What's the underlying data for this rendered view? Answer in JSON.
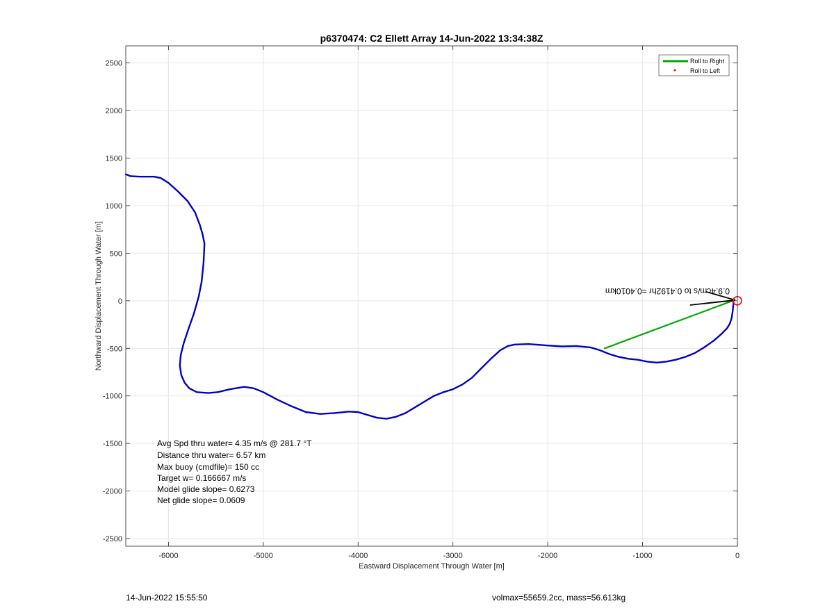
{
  "chart_data": {
    "type": "line",
    "title": "p6370474: C2 Ellett Array 14-Jun-2022 13:34:38Z",
    "xlabel": "Eastward Displacement Through Water [m]",
    "ylabel": "Northward Displacement Through Water [m]",
    "xlim": [
      -6450,
      0
    ],
    "ylim": [
      -2580,
      2680
    ],
    "xticks": [
      -6000,
      -5000,
      -4000,
      -3000,
      -2000,
      -1000,
      0
    ],
    "yticks": [
      -2500,
      -2000,
      -1500,
      -1000,
      -500,
      0,
      500,
      1000,
      1500,
      2000,
      2500
    ],
    "grid": true,
    "legend_position": "top-right",
    "legend": [
      {
        "name": "Roll to Right",
        "color": "#00a800",
        "style": "line"
      },
      {
        "name": "Roll to Left",
        "color": "#ff0000",
        "style": "dot"
      }
    ],
    "series": [
      {
        "name": "track",
        "color": "#0000c8",
        "x": [
          -6450,
          -6400,
          -6300,
          -6150,
          -6080,
          -6000,
          -5900,
          -5800,
          -5720,
          -5670,
          -5640,
          -5620,
          -5630,
          -5650,
          -5680,
          -5730,
          -5790,
          -5840,
          -5870,
          -5880,
          -5865,
          -5830,
          -5780,
          -5700,
          -5580,
          -5480,
          -5350,
          -5200,
          -5100,
          -5000,
          -4850,
          -4700,
          -4550,
          -4400,
          -4250,
          -4100,
          -4000,
          -3900,
          -3800,
          -3700,
          -3600,
          -3500,
          -3400,
          -3300,
          -3200,
          -3100,
          -3000,
          -2900,
          -2800,
          -2700,
          -2600,
          -2500,
          -2420,
          -2350,
          -2200,
          -2000,
          -1850,
          -1700,
          -1550,
          -1450,
          -1350,
          -1250,
          -1150,
          -1050,
          -950,
          -850,
          -750,
          -650,
          -550,
          -450,
          -350,
          -250,
          -170,
          -110,
          -80,
          -60,
          -50,
          -45,
          -40
        ],
        "y": [
          1330,
          1310,
          1305,
          1305,
          1290,
          1240,
          1150,
          1050,
          930,
          800,
          700,
          600,
          400,
          200,
          50,
          -130,
          -300,
          -450,
          -570,
          -680,
          -780,
          -860,
          -920,
          -960,
          -970,
          -960,
          -930,
          -905,
          -920,
          -960,
          -1040,
          -1110,
          -1170,
          -1190,
          -1180,
          -1165,
          -1170,
          -1200,
          -1230,
          -1240,
          -1220,
          -1180,
          -1120,
          -1060,
          -1000,
          -960,
          -930,
          -880,
          -810,
          -710,
          -610,
          -520,
          -475,
          -460,
          -455,
          -470,
          -480,
          -475,
          -490,
          -520,
          -560,
          -590,
          -610,
          -620,
          -640,
          -650,
          -640,
          -620,
          -590,
          -550,
          -490,
          -420,
          -350,
          -290,
          -240,
          -180,
          -110,
          -60,
          -10
        ]
      },
      {
        "name": "Roll to Right",
        "color": "#00a800",
        "x": [
          -1400,
          -50
        ],
        "y": [
          -500,
          0
        ]
      }
    ],
    "annotations": [
      "Avg Spd thru water=  4.35 m/s @ 281.7 °T",
      "Distance thru water=  6.57 km",
      "Max buoy (cmdfile)= 150 cc",
      "Target w= 0.166667 m/s",
      "Model glide slope= 0.6273",
      "Net glide slope= 0.0609"
    ],
    "current_label": "0.9.4cm/s to 0.4192hr =0.4010km",
    "marker": {
      "x": 0,
      "y": 0,
      "color": "#ff0000",
      "shape": "circle"
    }
  },
  "footer": {
    "left": "14-Jun-2022 15:55:50",
    "right": "volmax=55659.2cc, mass=56.613kg"
  }
}
